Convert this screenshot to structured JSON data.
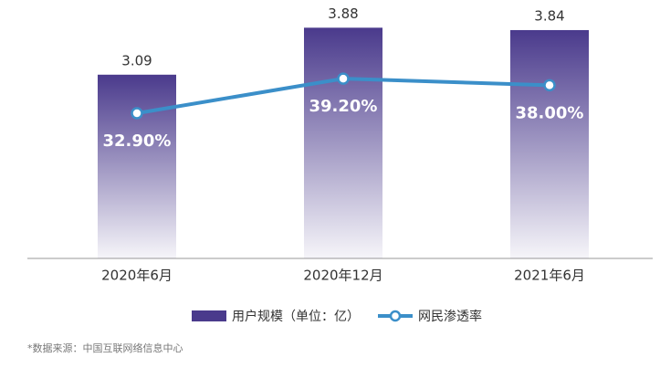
{
  "chart_data": {
    "type": "bar",
    "categories": [
      "2020年6月",
      "2020年12月",
      "2021年6月"
    ],
    "series": [
      {
        "name": "用户规模（单位：亿）",
        "type": "bar",
        "color": "#4a3a8c",
        "values": [
          3.09,
          3.88,
          3.84
        ]
      },
      {
        "name": "网民渗透率",
        "type": "line",
        "axis": "y2",
        "color": "#3b8fc9",
        "values": [
          32.9,
          39.2,
          38.0
        ],
        "value_labels": [
          "32.90%",
          "39.20%",
          "38.00%"
        ]
      }
    ],
    "ylim": [
      0,
      4.3
    ],
    "y2lim": [
      6.5,
      53
    ],
    "source": "*数据来源：中国互联网络信息中心"
  }
}
